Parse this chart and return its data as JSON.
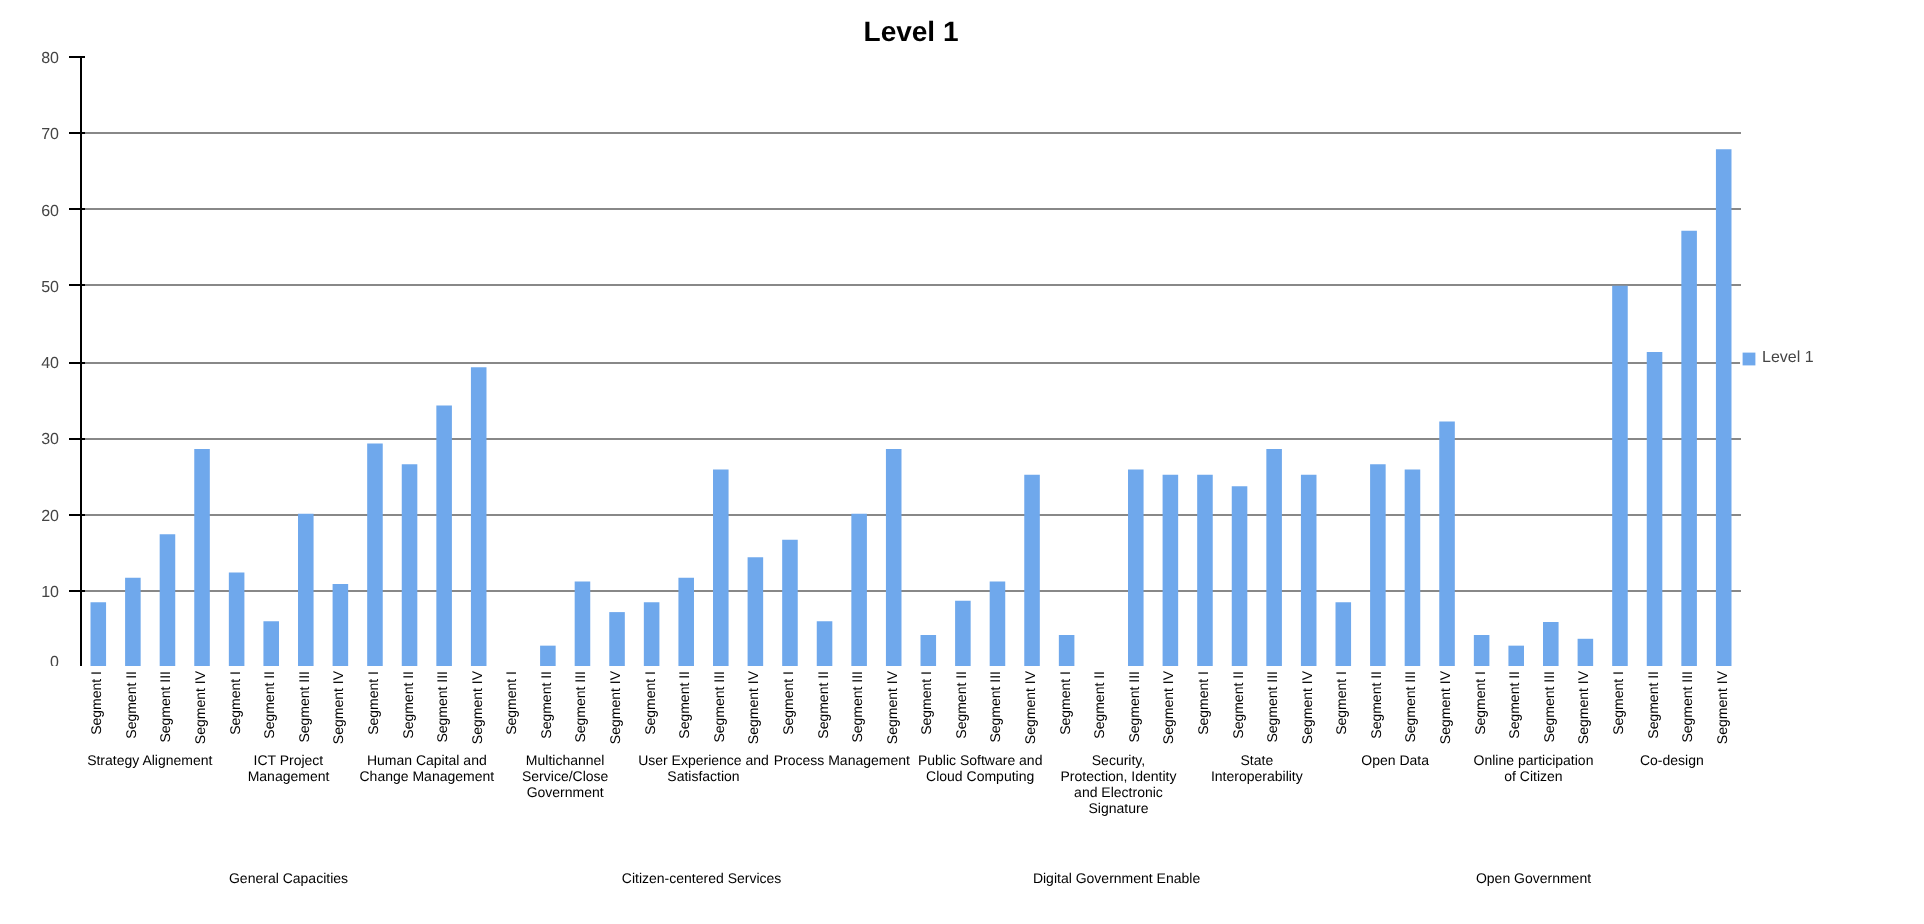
{
  "chart_data": {
    "type": "bar",
    "title": "Level 1",
    "categories": [
      [
        "General Capacities",
        "Strategy Alignement",
        "Segment I"
      ],
      [
        null,
        null,
        "Segment II"
      ],
      [
        null,
        null,
        "Segment III"
      ],
      [
        null,
        null,
        "Segment IV"
      ],
      [
        null,
        "ICT Project Management",
        "Segment I"
      ],
      [
        null,
        null,
        "Segment II"
      ],
      [
        null,
        null,
        "Segment III"
      ],
      [
        null,
        null,
        "Segment IV"
      ],
      [
        null,
        "Human Capital and Change Management",
        "Segment I"
      ],
      [
        null,
        null,
        "Segment II"
      ],
      [
        null,
        null,
        "Segment III"
      ],
      [
        null,
        null,
        "Segment IV"
      ],
      [
        "Citizen-centered  Services",
        "Multichannel Service/Close Government",
        "Segment I"
      ],
      [
        null,
        null,
        "Segment II"
      ],
      [
        null,
        null,
        "Segment III"
      ],
      [
        null,
        null,
        "Segment IV"
      ],
      [
        null,
        "User Experience and Satisfaction",
        "Segment I"
      ],
      [
        null,
        null,
        "Segment II"
      ],
      [
        null,
        null,
        "Segment III"
      ],
      [
        null,
        null,
        "Segment IV"
      ],
      [
        null,
        "Process Management",
        "Segment I"
      ],
      [
        null,
        null,
        "Segment II"
      ],
      [
        null,
        null,
        "Segment III"
      ],
      [
        null,
        null,
        "Segment IV"
      ],
      [
        "Digital Government  Enable",
        "Public Software and Cloud Computing",
        "Segment I"
      ],
      [
        null,
        null,
        "Segment II"
      ],
      [
        null,
        null,
        "Segment III"
      ],
      [
        null,
        null,
        "Segment IV"
      ],
      [
        null,
        "Security, Protection, Identity and Electronic Signature",
        "Segment I"
      ],
      [
        null,
        null,
        "Segment II"
      ],
      [
        null,
        null,
        "Segment III"
      ],
      [
        null,
        null,
        "Segment IV"
      ],
      [
        null,
        "State Interoperability",
        "Segment I"
      ],
      [
        null,
        null,
        "Segment II"
      ],
      [
        null,
        null,
        "Segment III"
      ],
      [
        null,
        null,
        "Segment IV"
      ],
      [
        "Open Government",
        "Open Data",
        "Segment I"
      ],
      [
        null,
        null,
        "Segment II"
      ],
      [
        null,
        null,
        "Segment III"
      ],
      [
        null,
        null,
        "Segment IV"
      ],
      [
        null,
        "Online participation  of Citizen",
        "Segment I"
      ],
      [
        null,
        null,
        "Segment II"
      ],
      [
        null,
        null,
        "Segment III"
      ],
      [
        null,
        null,
        "Segment IV"
      ],
      [
        null,
        "Co-design",
        "Segment I"
      ],
      [
        null,
        null,
        "Segment II"
      ],
      [
        null,
        null,
        "Segment III"
      ],
      [
        null,
        null,
        "Segment IV"
      ]
    ],
    "series": [
      {
        "name": "Level 1",
        "color": "#6fa8ec",
        "values": [
          8.5,
          11.7,
          17.4,
          28.6,
          12.4,
          6,
          20.1,
          10.9,
          29.3,
          26.6,
          34.3,
          39.3,
          0,
          2.8,
          11.2,
          7.2,
          8.5,
          11.7,
          25.9,
          14.4,
          16.7,
          6,
          20.1,
          28.6,
          4.2,
          8.7,
          11.2,
          25.2,
          4.2,
          0,
          25.9,
          25.2,
          25.2,
          23.7,
          28.6,
          25.2,
          8.5,
          26.6,
          25.9,
          32.2,
          4.2,
          2.8,
          5.9,
          3.7,
          50,
          41.3,
          57.2,
          67.9
        ]
      }
    ],
    "ylim": [
      0,
      80
    ],
    "yticks": [
      0,
      10,
      20,
      30,
      40,
      50,
      60,
      70,
      80
    ],
    "grid": "y",
    "legend": "right"
  }
}
